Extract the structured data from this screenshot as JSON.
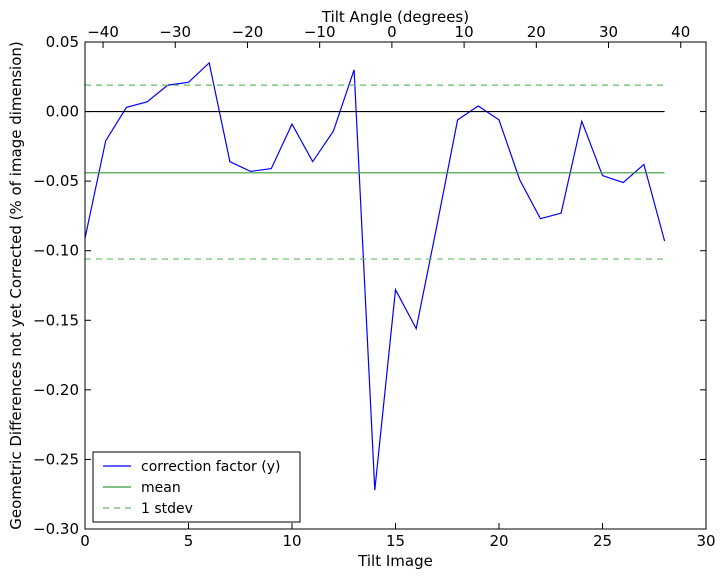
{
  "chart_data": {
    "type": "line",
    "xlabel": "Tilt Image",
    "ylabel": "Geometric Differences not yet Corrected (% of image dimension)",
    "x2label": "Tilt Angle (degrees)",
    "xlim": [
      0,
      30
    ],
    "ylim": [
      -0.3,
      0.05
    ],
    "x2lim": [
      -42.5,
      43.5
    ],
    "xticks": [
      0,
      5,
      10,
      15,
      20,
      25,
      30
    ],
    "xtick_labels": [
      "0",
      "5",
      "10",
      "15",
      "20",
      "25",
      "30"
    ],
    "x2ticks": [
      -40,
      -30,
      -20,
      -10,
      0,
      10,
      20,
      30,
      40
    ],
    "x2tick_labels": [
      "−40",
      "−30",
      "−20",
      "−10",
      "0",
      "10",
      "20",
      "30",
      "40"
    ],
    "yticks": [
      0.05,
      0.0,
      -0.05,
      -0.1,
      -0.15,
      -0.2,
      -0.25,
      -0.3
    ],
    "ytick_labels": [
      "0.05",
      "0.00",
      "−0.05",
      "−0.10",
      "−0.15",
      "−0.20",
      "−0.25",
      "−0.30"
    ],
    "grid": false,
    "legend_position": "lower-left",
    "series": [
      {
        "name": "correction factor (y)",
        "color": "#0000ff",
        "style": "solid",
        "x": [
          0,
          1,
          2,
          3,
          4,
          5,
          6,
          7,
          8,
          9,
          10,
          11,
          12,
          13,
          14,
          15,
          16,
          17,
          18,
          19,
          20,
          21,
          22,
          23,
          24,
          25,
          26,
          27,
          28
        ],
        "values": [
          -0.091,
          -0.021,
          0.003,
          0.007,
          0.019,
          0.021,
          0.035,
          -0.036,
          -0.043,
          -0.041,
          -0.009,
          -0.036,
          -0.014,
          0.03,
          -0.272,
          -0.128,
          -0.156,
          -0.082,
          -0.006,
          0.004,
          -0.006,
          -0.049,
          -0.077,
          -0.073,
          -0.007,
          -0.046,
          -0.051,
          -0.038,
          -0.093
        ]
      },
      {
        "name": "mean",
        "color": "#3a9a3a",
        "style": "solid",
        "x": [
          0,
          28
        ],
        "values": [
          -0.044,
          -0.044
        ]
      },
      {
        "name": "1 stdev",
        "color": "#66bb66",
        "style": "dashed",
        "x": [
          0,
          28
        ],
        "values": [
          0.019,
          0.019
        ]
      },
      {
        "name": "",
        "color": "#66bb66",
        "style": "dashed",
        "x": [
          0,
          28
        ],
        "values": [
          -0.106,
          -0.106
        ]
      },
      {
        "name": "",
        "color": "#000000",
        "style": "solid",
        "x": [
          0,
          28
        ],
        "values": [
          0,
          0
        ]
      }
    ],
    "legend_entries": [
      "correction factor (y)",
      "mean",
      "1 stdev"
    ]
  }
}
